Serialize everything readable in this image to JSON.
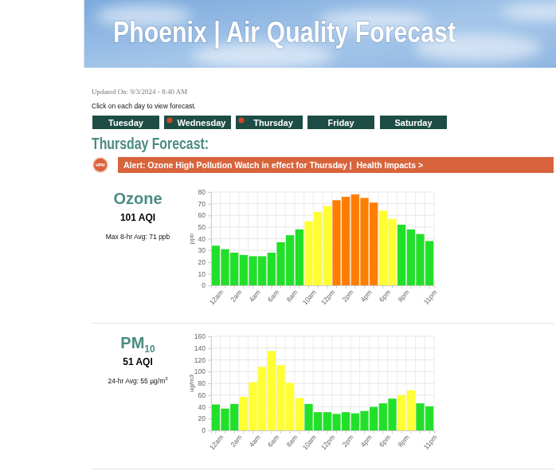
{
  "page": {
    "title": "Phoenix | Air Quality Forecast",
    "updated": "Updated On: 9/3/2024 - 8:40 AM",
    "instruction": "Click on each day to view forecast.",
    "days": [
      {
        "label": "Tuesday",
        "alert": false
      },
      {
        "label": "Wednesday",
        "alert": true
      },
      {
        "label": "Thursday",
        "alert": true
      },
      {
        "label": "Friday",
        "alert": false
      },
      {
        "label": "Saturday",
        "alert": false
      }
    ],
    "forecast_title": "Thursday Forecast:",
    "alert_icon": "HPW",
    "alert_text": "Alert: Ozone High Pollution Watch in effect for Thursday |  Health Impacts >"
  },
  "chart_data": [
    {
      "type": "bar",
      "title": "Ozone",
      "aqi_label": "101 AQI",
      "avg_label": "Max 8-hr Avg: 71 ppb",
      "y_label": "ppb",
      "categories": [
        "12am",
        null,
        "2am",
        null,
        "4am",
        null,
        "6am",
        null,
        "8am",
        null,
        "10am",
        null,
        "12pm",
        null,
        "2pm",
        null,
        "4pm",
        null,
        "6pm",
        null,
        "8pm",
        null,
        null,
        "11pm"
      ],
      "values": [
        34,
        31,
        28,
        26,
        25,
        25,
        28,
        37,
        43,
        48,
        55,
        63,
        68,
        73,
        76,
        78,
        75,
        71,
        64,
        57,
        52,
        48,
        44,
        38
      ],
      "colors": [
        "#22e02a",
        "#22e02a",
        "#22e02a",
        "#22e02a",
        "#22e02a",
        "#22e02a",
        "#22e02a",
        "#22e02a",
        "#22e02a",
        "#22e02a",
        "#ffff33",
        "#ffff33",
        "#ffff33",
        "#ff7e00",
        "#ff7e00",
        "#ff7e00",
        "#ff7e00",
        "#ff7e00",
        "#ffff33",
        "#ffff33",
        "#22e02a",
        "#22e02a",
        "#22e02a",
        "#22e02a"
      ],
      "ylim": [
        0,
        80
      ],
      "yticks": [
        0,
        10,
        20,
        30,
        40,
        50,
        60,
        70,
        80
      ],
      "grid": true
    },
    {
      "type": "bar",
      "title": "PM",
      "title_subscript": "10",
      "aqi_label": "51 AQI",
      "avg_label": "24-hr Avg: 55 µg/m",
      "avg_label_superscript": "3",
      "y_label": "ug/m3",
      "categories": [
        "12am",
        null,
        "2am",
        null,
        "4am",
        null,
        "6am",
        null,
        "8am",
        null,
        "10am",
        null,
        "12pm",
        null,
        "2pm",
        null,
        "4pm",
        null,
        "6pm",
        null,
        "8pm",
        null,
        null,
        "11pm"
      ],
      "values": [
        44,
        37,
        45,
        57,
        82,
        108,
        135,
        111,
        81,
        55,
        45,
        31,
        31,
        28,
        31,
        29,
        33,
        40,
        46,
        54,
        60,
        68,
        46,
        41
      ],
      "colors": [
        "#22e02a",
        "#22e02a",
        "#22e02a",
        "#ffff33",
        "#ffff33",
        "#ffff33",
        "#ffff33",
        "#ffff33",
        "#ffff33",
        "#ffff33",
        "#22e02a",
        "#22e02a",
        "#22e02a",
        "#22e02a",
        "#22e02a",
        "#22e02a",
        "#22e02a",
        "#22e02a",
        "#22e02a",
        "#22e02a",
        "#ffff33",
        "#ffff33",
        "#22e02a",
        "#22e02a"
      ],
      "ylim": [
        0,
        160
      ],
      "yticks": [
        0,
        20,
        40,
        60,
        80,
        100,
        120,
        140,
        160
      ],
      "grid": true
    }
  ]
}
